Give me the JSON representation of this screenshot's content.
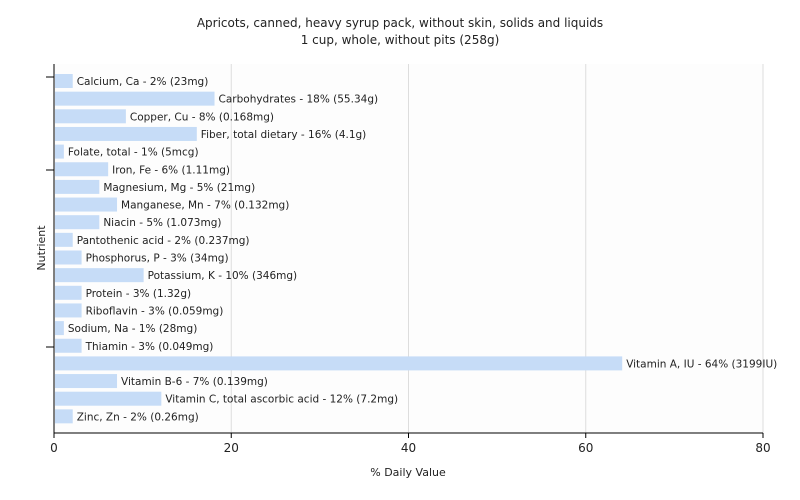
{
  "chart_data": {
    "type": "bar",
    "orientation": "horizontal",
    "title": "Apricots, canned, heavy syrup pack, without skin, solids and liquids",
    "subtitle": "1 cup, whole, without pits (258g)",
    "xlabel": "% Daily Value",
    "ylabel": "Nutrient",
    "xlim": [
      0,
      80
    ],
    "xticks": [
      "0",
      "20",
      "40",
      "60",
      "80"
    ],
    "grid": true,
    "bar_color": "#c6dcf7",
    "grid_color": "#dddddd",
    "categories": [
      "Calcium, Ca",
      "Carbohydrates",
      "Copper, Cu",
      "Fiber, total dietary",
      "Folate, total",
      "Iron, Fe",
      "Magnesium, Mg",
      "Manganese, Mn",
      "Niacin",
      "Pantothenic acid",
      "Phosphorus, P",
      "Potassium, K",
      "Protein",
      "Riboflavin",
      "Sodium, Na",
      "Thiamin",
      "Vitamin A, IU",
      "Vitamin B-6",
      "Vitamin C, total ascorbic acid",
      "Zinc, Zn"
    ],
    "values": [
      2,
      18,
      8,
      16,
      1,
      6,
      5,
      7,
      5,
      2,
      3,
      10,
      3,
      3,
      1,
      3,
      64,
      7,
      12,
      2
    ],
    "labels": [
      "Calcium, Ca - 2% (23mg)",
      "Carbohydrates - 18% (55.34g)",
      "Copper, Cu - 8% (0.168mg)",
      "Fiber, total dietary - 16% (4.1g)",
      "Folate, total - 1% (5mcg)",
      "Iron, Fe - 6% (1.11mg)",
      "Magnesium, Mg - 5% (21mg)",
      "Manganese, Mn - 7% (0.132mg)",
      "Niacin - 5% (1.073mg)",
      "Pantothenic acid - 2% (0.237mg)",
      "Phosphorus, P - 3% (34mg)",
      "Potassium, K - 10% (346mg)",
      "Protein - 3% (1.32g)",
      "Riboflavin - 3% (0.059mg)",
      "Sodium, Na - 1% (28mg)",
      "Thiamin - 3% (0.049mg)",
      "Vitamin A, IU - 64% (3199IU)",
      "Vitamin B-6 - 7% (0.139mg)",
      "Vitamin C, total ascorbic acid - 12% (7.2mg)",
      "Zinc, Zn - 2% (0.26mg)"
    ]
  }
}
